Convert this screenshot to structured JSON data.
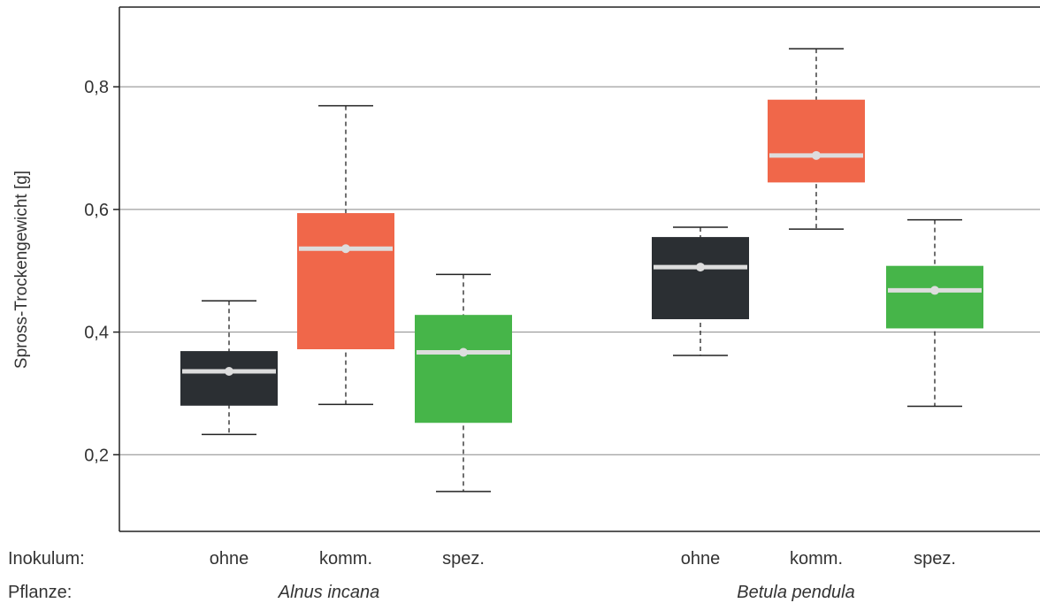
{
  "chart_data": {
    "type": "boxplot",
    "ylabel": "Spross-Trockengewicht [g]",
    "ylim": [
      0.075,
      0.93
    ],
    "yticks": [
      0.2,
      0.4,
      0.6,
      0.8
    ],
    "ytick_labels": [
      "0,2",
      "0,4",
      "0,6",
      "0,8"
    ],
    "grid": true,
    "row_labels": {
      "inokulum": "Inokulum:",
      "pflanze": "Pflanze:"
    },
    "treatment_colors": {
      "ohne": "#2b2f33",
      "komm.": "#f0674a",
      "spez.": "#46b549"
    },
    "median_color": "#dddddd",
    "groups": [
      {
        "plant": "Alnus incana",
        "boxes": [
          {
            "inokulum": "ohne",
            "whisker_low": 0.233,
            "q1": 0.28,
            "median": 0.336,
            "q3": 0.369,
            "whisker_high": 0.451
          },
          {
            "inokulum": "komm.",
            "whisker_low": 0.282,
            "q1": 0.372,
            "median": 0.536,
            "q3": 0.594,
            "whisker_high": 0.769
          },
          {
            "inokulum": "spez.",
            "whisker_low": 0.14,
            "q1": 0.252,
            "median": 0.367,
            "q3": 0.428,
            "whisker_high": 0.494
          }
        ]
      },
      {
        "plant": "Betula pendula",
        "boxes": [
          {
            "inokulum": "ohne",
            "whisker_low": 0.362,
            "q1": 0.421,
            "median": 0.506,
            "q3": 0.555,
            "whisker_high": 0.571
          },
          {
            "inokulum": "komm.",
            "whisker_low": 0.568,
            "q1": 0.644,
            "median": 0.688,
            "q3": 0.779,
            "whisker_high": 0.862
          },
          {
            "inokulum": "spez.",
            "whisker_low": 0.279,
            "q1": 0.406,
            "median": 0.468,
            "q3": 0.508,
            "whisker_high": 0.583
          }
        ]
      }
    ]
  }
}
